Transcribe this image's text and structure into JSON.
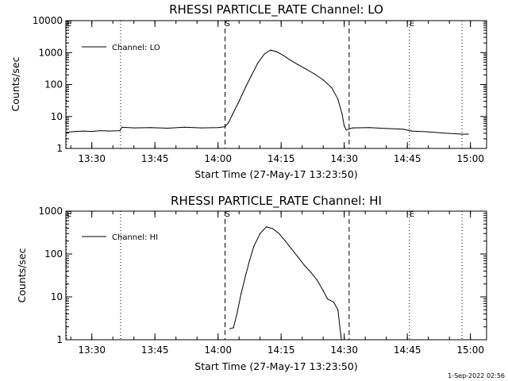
{
  "chart_data": [
    {
      "type": "line",
      "title": "RHESSI PARTICLE_RATE Channel: LO",
      "xlabel": "Start Time (27-May-17 13:23:50)",
      "ylabel": "Counts/sec",
      "yscale": "log",
      "ylim": [
        1,
        10000
      ],
      "xlim": [
        "13:23:50",
        "15:03:50"
      ],
      "x_ticks": [
        "13:30",
        "13:45",
        "14:00",
        "14:15",
        "14:30",
        "14:45",
        "15:00"
      ],
      "y_ticks": [
        "1",
        "10",
        "100",
        "1000",
        "10000"
      ],
      "markers": [
        {
          "label": "E",
          "time": "13:24:00",
          "style": "dotted"
        },
        {
          "label": "",
          "time": "13:36:50",
          "style": "dotted"
        },
        {
          "label": "S",
          "time": "14:01:40",
          "style": "dashed"
        },
        {
          "label": "",
          "time": "14:31:10",
          "style": "dashed"
        },
        {
          "label": "E",
          "time": "14:45:30",
          "style": "dotted"
        },
        {
          "label": "",
          "time": "14:58:00",
          "style": "dotted"
        }
      ],
      "legend": {
        "placement": "top-left",
        "entries": [
          "Channel: LO"
        ]
      },
      "series": [
        {
          "name": "Channel: LO",
          "color": "#000000",
          "points": [
            [
              "13:24:00",
              3.2
            ],
            [
              "13:26:00",
              3.4
            ],
            [
              "13:28:00",
              3.5
            ],
            [
              "13:30:00",
              3.4
            ],
            [
              "13:32:00",
              3.6
            ],
            [
              "13:34:00",
              3.5
            ],
            [
              "13:36:40",
              3.6
            ],
            [
              "13:37:10",
              4.6
            ],
            [
              "13:40:00",
              4.4
            ],
            [
              "13:44:00",
              4.5
            ],
            [
              "13:48:00",
              4.3
            ],
            [
              "13:52:00",
              4.6
            ],
            [
              "13:56:00",
              4.4
            ],
            [
              "14:00:00",
              4.5
            ],
            [
              "14:01:40",
              4.8
            ],
            [
              "14:02:30",
              6.5
            ],
            [
              "14:03:30",
              12
            ],
            [
              "14:05:00",
              30
            ],
            [
              "14:06:30",
              80
            ],
            [
              "14:08:00",
              200
            ],
            [
              "14:09:30",
              480
            ],
            [
              "14:11:00",
              900
            ],
            [
              "14:12:30",
              1200
            ],
            [
              "14:14:00",
              1050
            ],
            [
              "14:15:30",
              820
            ],
            [
              "14:17:00",
              600
            ],
            [
              "14:19:00",
              420
            ],
            [
              "14:21:00",
              300
            ],
            [
              "14:23:00",
              210
            ],
            [
              "14:25:00",
              140
            ],
            [
              "14:27:00",
              80
            ],
            [
              "14:28:30",
              35
            ],
            [
              "14:29:30",
              12
            ],
            [
              "14:30:00",
              5
            ],
            [
              "14:30:30",
              3.8
            ],
            [
              "14:32:00",
              4.4
            ],
            [
              "14:36:00",
              4.5
            ],
            [
              "14:40:00",
              4.2
            ],
            [
              "14:44:00",
              4.0
            ],
            [
              "14:46:00",
              3.5
            ],
            [
              "14:50:00",
              3.3
            ],
            [
              "14:54:00",
              3.0
            ],
            [
              "14:58:00",
              2.8
            ],
            [
              "14:59:30",
              2.8
            ]
          ]
        }
      ]
    },
    {
      "type": "line",
      "title": "RHESSI PARTICLE_RATE Channel: HI",
      "xlabel": "Start Time (27-May-17 13:23:50)",
      "ylabel": "Counts/sec",
      "yscale": "log",
      "ylim": [
        1,
        1000
      ],
      "xlim": [
        "13:23:50",
        "15:03:50"
      ],
      "x_ticks": [
        "13:30",
        "13:45",
        "14:00",
        "14:15",
        "14:30",
        "14:45",
        "15:00"
      ],
      "y_ticks": [
        "1",
        "10",
        "100",
        "1000"
      ],
      "markers": [
        {
          "label": "E",
          "time": "13:24:00",
          "style": "dotted"
        },
        {
          "label": "",
          "time": "13:36:50",
          "style": "dotted"
        },
        {
          "label": "S",
          "time": "14:01:40",
          "style": "dashed"
        },
        {
          "label": "",
          "time": "14:31:10",
          "style": "dashed"
        },
        {
          "label": "E",
          "time": "14:45:30",
          "style": "dotted"
        },
        {
          "label": "",
          "time": "14:58:00",
          "style": "dotted"
        }
      ],
      "legend": {
        "placement": "top-left",
        "entries": [
          "Channel: HI"
        ]
      },
      "series": [
        {
          "name": "Channel: HI",
          "color": "#000000",
          "points": [
            [
              "14:02:50",
              1.8
            ],
            [
              "14:03:40",
              1.9
            ],
            [
              "14:04:30",
              4
            ],
            [
              "14:05:30",
              12
            ],
            [
              "14:06:30",
              30
            ],
            [
              "14:07:30",
              70
            ],
            [
              "14:08:30",
              150
            ],
            [
              "14:10:00",
              300
            ],
            [
              "14:11:30",
              430
            ],
            [
              "14:13:00",
              390
            ],
            [
              "14:14:30",
              300
            ],
            [
              "14:16:00",
              200
            ],
            [
              "14:17:30",
              130
            ],
            [
              "14:19:00",
              85
            ],
            [
              "14:20:30",
              55
            ],
            [
              "14:22:00",
              38
            ],
            [
              "14:23:30",
              25
            ],
            [
              "14:25:00",
              14
            ],
            [
              "14:26:00",
              9
            ],
            [
              "14:27:30",
              7.5
            ],
            [
              "14:28:30",
              5
            ],
            [
              "14:29:10",
              1.3
            ],
            [
              "14:29:20",
              1.0
            ]
          ]
        }
      ]
    }
  ],
  "footer": {
    "timestamp": "1-Sep-2022 02:56"
  }
}
